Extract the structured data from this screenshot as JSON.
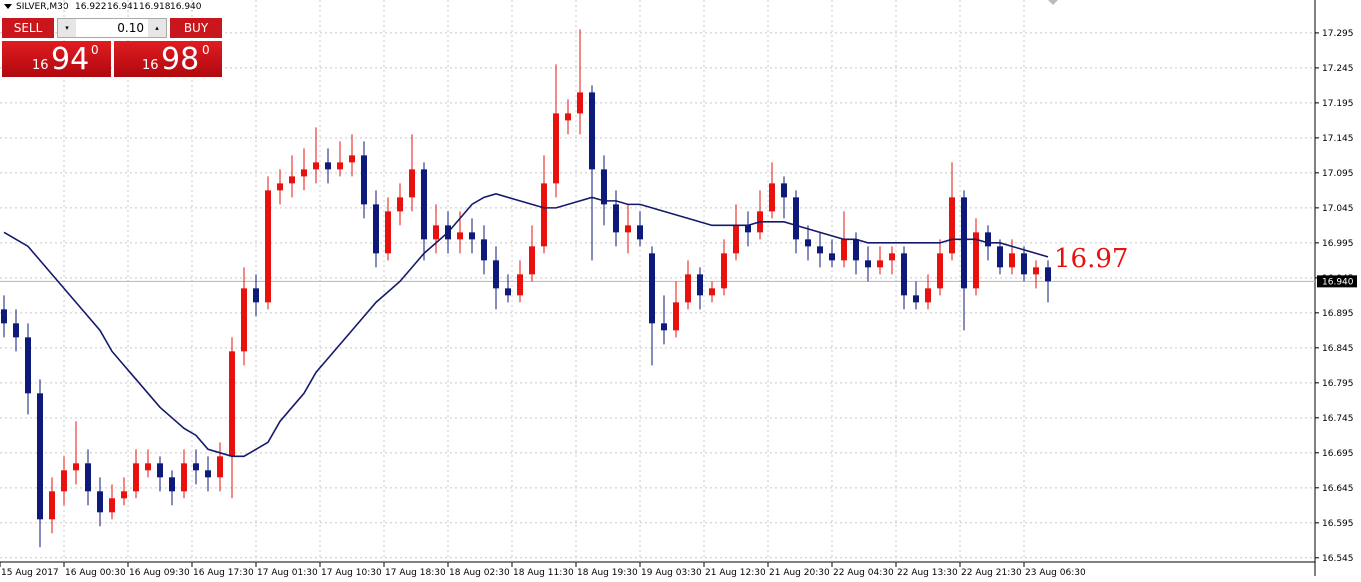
{
  "header": {
    "symbol": "SILVER,M30",
    "ohlc": [
      "16.922",
      "16.941",
      "16.918",
      "16.940"
    ]
  },
  "trade_panel": {
    "sell": "SELL",
    "buy": "BUY",
    "lot": "0.10",
    "sell_price": {
      "big": "16",
      "main": "94",
      "sup": "0"
    },
    "buy_price": {
      "big": "16",
      "main": "98",
      "sup": "0"
    }
  },
  "chart_data": {
    "type": "candlestick",
    "up_color": "#e8110e",
    "down_color": "#0d1a7a",
    "ma_color": "#141a6b",
    "ylim": [
      16.539,
      17.342
    ],
    "yticks": [
      16.545,
      16.595,
      16.645,
      16.695,
      16.745,
      16.795,
      16.845,
      16.895,
      16.945,
      16.995,
      17.045,
      17.095,
      17.145,
      17.195,
      17.245,
      17.295
    ],
    "grid": true,
    "x_labels": [
      "15 Aug 2017",
      "16 Aug 00:30",
      "16 Aug 09:30",
      "16 Aug 17:30",
      "17 Aug 01:30",
      "17 Aug 10:30",
      "17 Aug 18:30",
      "18 Aug 02:30",
      "18 Aug 11:30",
      "18 Aug 19:30",
      "19 Aug 03:30",
      "21 Aug 12:30",
      "21 Aug 20:30",
      "22 Aug 04:30",
      "22 Aug 13:30",
      "22 Aug 21:30",
      "23 Aug 06:30"
    ],
    "candles": [
      [
        16.9,
        16.92,
        16.86,
        16.88
      ],
      [
        16.88,
        16.9,
        16.84,
        16.86
      ],
      [
        16.86,
        16.88,
        16.75,
        16.78
      ],
      [
        16.78,
        16.8,
        16.56,
        16.6
      ],
      [
        16.6,
        16.66,
        16.58,
        16.64
      ],
      [
        16.64,
        16.69,
        16.62,
        16.67
      ],
      [
        16.67,
        16.74,
        16.65,
        16.68
      ],
      [
        16.68,
        16.7,
        16.62,
        16.64
      ],
      [
        16.64,
        16.66,
        16.59,
        16.61
      ],
      [
        16.61,
        16.65,
        16.6,
        16.63
      ],
      [
        16.63,
        16.66,
        16.62,
        16.64
      ],
      [
        16.64,
        16.7,
        16.63,
        16.68
      ],
      [
        16.67,
        16.7,
        16.66,
        16.68
      ],
      [
        16.68,
        16.69,
        16.64,
        16.66
      ],
      [
        16.66,
        16.67,
        16.62,
        16.64
      ],
      [
        16.64,
        16.7,
        16.63,
        16.68
      ],
      [
        16.68,
        16.7,
        16.65,
        16.67
      ],
      [
        16.67,
        16.69,
        16.64,
        16.66
      ],
      [
        16.66,
        16.71,
        16.64,
        16.69
      ],
      [
        16.69,
        16.86,
        16.63,
        16.84
      ],
      [
        16.84,
        16.96,
        16.82,
        16.93
      ],
      [
        16.93,
        16.95,
        16.89,
        16.91
      ],
      [
        16.91,
        17.09,
        16.9,
        17.07
      ],
      [
        17.07,
        17.1,
        17.05,
        17.08
      ],
      [
        17.08,
        17.12,
        17.06,
        17.09
      ],
      [
        17.09,
        17.13,
        17.07,
        17.1
      ],
      [
        17.1,
        17.16,
        17.08,
        17.11
      ],
      [
        17.11,
        17.13,
        17.08,
        17.1
      ],
      [
        17.1,
        17.14,
        17.09,
        17.11
      ],
      [
        17.11,
        17.15,
        17.09,
        17.12
      ],
      [
        17.12,
        17.14,
        17.03,
        17.05
      ],
      [
        17.05,
        17.07,
        16.96,
        16.98
      ],
      [
        16.98,
        17.06,
        16.97,
        17.04
      ],
      [
        17.04,
        17.08,
        17.02,
        17.06
      ],
      [
        17.06,
        17.15,
        17.04,
        17.1
      ],
      [
        17.1,
        17.11,
        16.97,
        17.0
      ],
      [
        17.0,
        17.05,
        16.98,
        17.02
      ],
      [
        17.02,
        17.04,
        16.98,
        17.0
      ],
      [
        17.0,
        17.04,
        16.98,
        17.01
      ],
      [
        17.01,
        17.03,
        16.98,
        17.0
      ],
      [
        17.0,
        17.02,
        16.95,
        16.97
      ],
      [
        16.97,
        16.99,
        16.9,
        16.93
      ],
      [
        16.93,
        16.95,
        16.91,
        16.92
      ],
      [
        16.92,
        16.97,
        16.91,
        16.95
      ],
      [
        16.95,
        17.02,
        16.94,
        16.99
      ],
      [
        16.99,
        17.12,
        16.98,
        17.08
      ],
      [
        17.08,
        17.25,
        17.06,
        17.18
      ],
      [
        17.17,
        17.2,
        17.15,
        17.18
      ],
      [
        17.18,
        17.3,
        17.15,
        17.21
      ],
      [
        17.21,
        17.22,
        16.97,
        17.1
      ],
      [
        17.1,
        17.12,
        17.02,
        17.05
      ],
      [
        17.05,
        17.07,
        16.99,
        17.01
      ],
      [
        17.01,
        17.05,
        16.98,
        17.02
      ],
      [
        17.02,
        17.04,
        16.99,
        17.0
      ],
      [
        16.98,
        16.99,
        16.82,
        16.88
      ],
      [
        16.88,
        16.92,
        16.85,
        16.87
      ],
      [
        16.87,
        16.94,
        16.86,
        16.91
      ],
      [
        16.91,
        16.97,
        16.9,
        16.95
      ],
      [
        16.95,
        16.96,
        16.9,
        16.92
      ],
      [
        16.92,
        16.94,
        16.91,
        16.93
      ],
      [
        16.93,
        17.0,
        16.92,
        16.98
      ],
      [
        16.98,
        17.05,
        16.97,
        17.02
      ],
      [
        17.02,
        17.04,
        16.99,
        17.01
      ],
      [
        17.01,
        17.07,
        17.0,
        17.04
      ],
      [
        17.04,
        17.11,
        17.03,
        17.08
      ],
      [
        17.08,
        17.09,
        17.03,
        17.06
      ],
      [
        17.06,
        17.07,
        16.98,
        17.0
      ],
      [
        17.0,
        17.02,
        16.97,
        16.99
      ],
      [
        16.99,
        17.01,
        16.96,
        16.98
      ],
      [
        16.98,
        17.0,
        16.96,
        16.97
      ],
      [
        16.97,
        17.04,
        16.96,
        17.0
      ],
      [
        17.0,
        17.01,
        16.95,
        16.97
      ],
      [
        16.97,
        16.99,
        16.94,
        16.96
      ],
      [
        16.96,
        16.99,
        16.95,
        16.97
      ],
      [
        16.97,
        16.99,
        16.95,
        16.98
      ],
      [
        16.98,
        16.99,
        16.9,
        16.92
      ],
      [
        16.92,
        16.94,
        16.9,
        16.91
      ],
      [
        16.91,
        16.95,
        16.9,
        16.93
      ],
      [
        16.93,
        17.0,
        16.92,
        16.98
      ],
      [
        16.98,
        17.11,
        16.97,
        17.06
      ],
      [
        17.06,
        17.07,
        16.87,
        16.93
      ],
      [
        16.93,
        17.03,
        16.92,
        17.01
      ],
      [
        17.01,
        17.02,
        16.97,
        16.99
      ],
      [
        16.99,
        17.0,
        16.95,
        16.96
      ],
      [
        16.96,
        17.0,
        16.95,
        16.98
      ],
      [
        16.98,
        16.99,
        16.94,
        16.95
      ],
      [
        16.95,
        16.97,
        16.93,
        16.96
      ],
      [
        16.96,
        16.97,
        16.91,
        16.94
      ]
    ],
    "ma": [
      17.01,
      17.0,
      16.99,
      16.97,
      16.95,
      16.93,
      16.91,
      16.89,
      16.87,
      16.84,
      16.82,
      16.8,
      16.78,
      16.76,
      16.745,
      16.73,
      16.72,
      16.7,
      16.695,
      16.69,
      16.69,
      16.7,
      16.71,
      16.74,
      16.76,
      16.78,
      16.81,
      16.83,
      16.85,
      16.87,
      16.89,
      16.91,
      16.925,
      16.94,
      16.96,
      16.98,
      16.995,
      17.01,
      17.03,
      17.05,
      17.06,
      17.065,
      17.06,
      17.055,
      17.05,
      17.045,
      17.045,
      17.05,
      17.055,
      17.06,
      17.055,
      17.055,
      17.05,
      17.05,
      17.045,
      17.04,
      17.035,
      17.03,
      17.025,
      17.02,
      17.02,
      17.02,
      17.02,
      17.025,
      17.025,
      17.025,
      17.02,
      17.015,
      17.01,
      17.005,
      17.0,
      17.0,
      16.995,
      16.995,
      16.995,
      16.995,
      16.995,
      16.995,
      16.995,
      17.0,
      17.0,
      17.0,
      16.995,
      16.995,
      16.99,
      16.985,
      16.98,
      16.975
    ],
    "ma_label": "16.97",
    "current_price": {
      "value": 16.94,
      "label": "16.940"
    }
  }
}
